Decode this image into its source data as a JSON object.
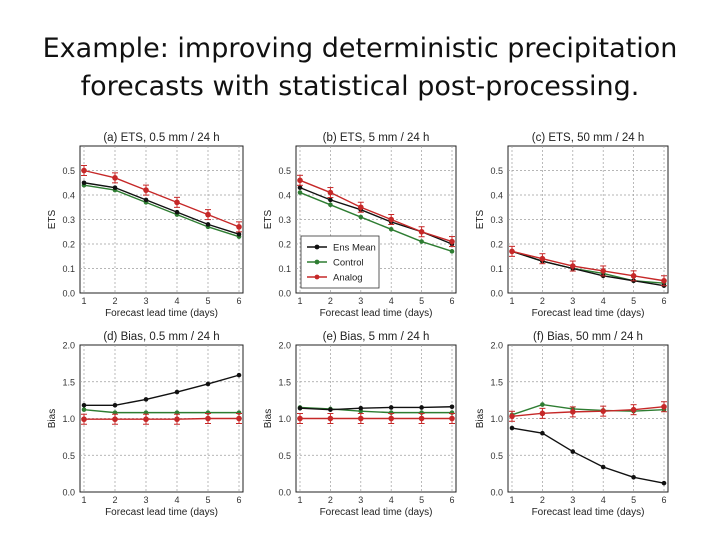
{
  "slide": {
    "title_line1": "Example: improving deterministic precipitation",
    "title_line2": "forecasts with statistical post-processing."
  },
  "colors": {
    "ens_mean": "#111111",
    "control": "#2e7d32",
    "analog": "#c62828",
    "grid": "#9e9e9e"
  },
  "legend": [
    "Ens Mean",
    "Control",
    "Analog"
  ],
  "chart_data": [
    {
      "type": "line",
      "title": "(a) ETS, 0.5 mm / 24 h",
      "xlabel": "Forecast lead time (days)",
      "ylabel": "ETS",
      "x": [
        1,
        2,
        3,
        4,
        5,
        6
      ],
      "xlim": [
        1,
        6
      ],
      "ylim": [
        0,
        0.6
      ],
      "yticks": [
        "0.0",
        "0.1",
        "0.2",
        "0.3",
        "0.4",
        "0.5"
      ],
      "xticks": [
        "1",
        "2",
        "3",
        "4",
        "5",
        "6"
      ],
      "grid": true,
      "series": [
        {
          "name": "Ens Mean",
          "values": [
            0.45,
            0.43,
            0.38,
            0.33,
            0.28,
            0.24
          ]
        },
        {
          "name": "Control",
          "values": [
            0.44,
            0.42,
            0.37,
            0.32,
            0.27,
            0.23
          ]
        },
        {
          "name": "Analog",
          "values": [
            0.5,
            0.47,
            0.42,
            0.37,
            0.32,
            0.27
          ]
        }
      ]
    },
    {
      "type": "line",
      "title": "(b) ETS, 5 mm / 24 h",
      "xlabel": "Forecast lead time (days)",
      "ylabel": "ETS",
      "x": [
        1,
        2,
        3,
        4,
        5,
        6
      ],
      "xlim": [
        1,
        6
      ],
      "ylim": [
        0,
        0.6
      ],
      "yticks": [
        "0.0",
        "0.1",
        "0.2",
        "0.3",
        "0.4",
        "0.5"
      ],
      "xticks": [
        "1",
        "2",
        "3",
        "4",
        "5",
        "6"
      ],
      "grid": true,
      "legend_position": "lower-left",
      "series": [
        {
          "name": "Ens Mean",
          "values": [
            0.43,
            0.38,
            0.34,
            0.29,
            0.25,
            0.2
          ]
        },
        {
          "name": "Control",
          "values": [
            0.41,
            0.36,
            0.31,
            0.26,
            0.21,
            0.17
          ]
        },
        {
          "name": "Analog",
          "values": [
            0.46,
            0.41,
            0.35,
            0.3,
            0.25,
            0.21
          ]
        }
      ]
    },
    {
      "type": "line",
      "title": "(c) ETS, 50 mm / 24 h",
      "xlabel": "Forecast lead time (days)",
      "ylabel": "ETS",
      "x": [
        1,
        2,
        3,
        4,
        5,
        6
      ],
      "xlim": [
        1,
        6
      ],
      "ylim": [
        0,
        0.6
      ],
      "yticks": [
        "0.0",
        "0.1",
        "0.2",
        "0.3",
        "0.4",
        "0.5"
      ],
      "xticks": [
        "1",
        "2",
        "3",
        "4",
        "5",
        "6"
      ],
      "grid": true,
      "series": [
        {
          "name": "Ens Mean",
          "values": [
            0.17,
            0.13,
            0.1,
            0.07,
            0.05,
            0.03
          ]
        },
        {
          "name": "Control",
          "values": [
            0.17,
            0.13,
            0.1,
            0.08,
            0.05,
            0.04
          ]
        },
        {
          "name": "Analog",
          "values": [
            0.17,
            0.14,
            0.11,
            0.09,
            0.07,
            0.05
          ]
        }
      ]
    },
    {
      "type": "line",
      "title": "(d) Bias, 0.5 mm / 24 h",
      "xlabel": "Forecast lead time (days)",
      "ylabel": "Bias",
      "x": [
        1,
        2,
        3,
        4,
        5,
        6
      ],
      "xlim": [
        1,
        6
      ],
      "ylim": [
        0,
        2.0
      ],
      "yticks": [
        "0.0",
        "0.5",
        "1.0",
        "1.5",
        "2.0"
      ],
      "xticks": [
        "1",
        "2",
        "3",
        "4",
        "5",
        "6"
      ],
      "grid": true,
      "series": [
        {
          "name": "Ens Mean",
          "values": [
            1.18,
            1.18,
            1.26,
            1.36,
            1.47,
            1.59
          ]
        },
        {
          "name": "Control",
          "values": [
            1.12,
            1.08,
            1.08,
            1.08,
            1.08,
            1.08
          ]
        },
        {
          "name": "Analog",
          "values": [
            0.99,
            0.99,
            0.99,
            0.99,
            1.0,
            1.0
          ]
        }
      ]
    },
    {
      "type": "line",
      "title": "(e) Bias, 5 mm / 24 h",
      "xlabel": "Forecast lead time (days)",
      "ylabel": "Bias",
      "x": [
        1,
        2,
        3,
        4,
        5,
        6
      ],
      "xlim": [
        1,
        6
      ],
      "ylim": [
        0,
        2.0
      ],
      "yticks": [
        "0.0",
        "0.5",
        "1.0",
        "1.5",
        "2.0"
      ],
      "xticks": [
        "1",
        "2",
        "3",
        "4",
        "5",
        "6"
      ],
      "grid": true,
      "series": [
        {
          "name": "Ens Mean",
          "values": [
            1.14,
            1.12,
            1.14,
            1.15,
            1.15,
            1.16
          ]
        },
        {
          "name": "Control",
          "values": [
            1.15,
            1.13,
            1.1,
            1.08,
            1.08,
            1.08
          ]
        },
        {
          "name": "Analog",
          "values": [
            1.0,
            1.0,
            1.0,
            1.0,
            1.0,
            1.0
          ]
        }
      ]
    },
    {
      "type": "line",
      "title": "(f) Bias, 50 mm / 24 h",
      "xlabel": "Forecast lead time (days)",
      "ylabel": "Bias",
      "x": [
        1,
        2,
        3,
        4,
        5,
        6
      ],
      "xlim": [
        1,
        6
      ],
      "ylim": [
        0,
        2.0
      ],
      "yticks": [
        "0.0",
        "0.5",
        "1.0",
        "1.5",
        "2.0"
      ],
      "xticks": [
        "1",
        "2",
        "3",
        "4",
        "5",
        "6"
      ],
      "grid": true,
      "series": [
        {
          "name": "Ens Mean",
          "values": [
            0.87,
            0.8,
            0.55,
            0.34,
            0.2,
            0.12
          ]
        },
        {
          "name": "Control",
          "values": [
            1.05,
            1.19,
            1.13,
            1.11,
            1.1,
            1.12
          ]
        },
        {
          "name": "Analog",
          "values": [
            1.03,
            1.07,
            1.09,
            1.1,
            1.12,
            1.16
          ]
        }
      ]
    }
  ]
}
